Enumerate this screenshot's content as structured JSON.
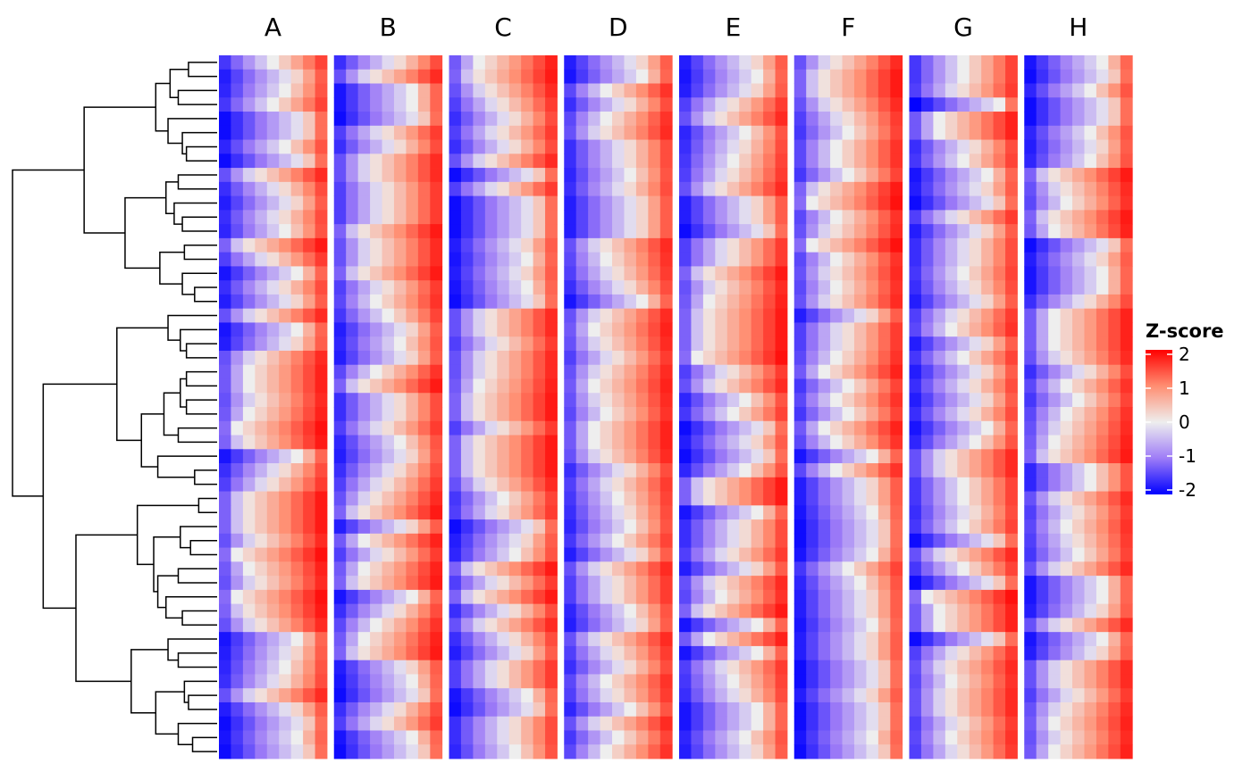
{
  "chart_data": {
    "type": "heatmap",
    "title": "",
    "rows": 50,
    "columns_per_panel": 9,
    "value_encoding": "each row in each panel increases monotonically left to right; zero_col is the column position (0-8) where its Z-score crosses 0",
    "panels": [
      {
        "name": "A",
        "zero_col": [
          4,
          5.5,
          5,
          4,
          6.5,
          6.5,
          5,
          6.5,
          2.5,
          4.5,
          5.5,
          4.5,
          5,
          1.5,
          3.5,
          6,
          4.5,
          5.5,
          2.5,
          6,
          5.5,
          2.5,
          2,
          2,
          2.5,
          2,
          1,
          1.5,
          6,
          4.5,
          3.5,
          1.5,
          1.5,
          1.5,
          2.5,
          1,
          2,
          2.5,
          1,
          1.5,
          2.5,
          6,
          5.5,
          5,
          4.5,
          2.5,
          5.5,
          6.5,
          6,
          6.5
        ]
      },
      {
        "name": "B",
        "zero_col": [
          4.5,
          2.5,
          6,
          6,
          6.5,
          3.5,
          4.5,
          2.5,
          2.5,
          3.5,
          3.5,
          3.5,
          1.5,
          2.5,
          2.5,
          1.5,
          3.5,
          3,
          4,
          5.5,
          5,
          5.5,
          3,
          1.5,
          4.5,
          4.5,
          3.5,
          5,
          5.5,
          4.5,
          3.5,
          2.5,
          1.5,
          5.5,
          2,
          3.5,
          2,
          1.5,
          6,
          4.5,
          3,
          2,
          1.5,
          5.5,
          6,
          6.5,
          4.5,
          3.5,
          6,
          6.5
        ]
      },
      {
        "name": "C",
        "zero_col": [
          2,
          1.5,
          2.5,
          3.5,
          4.5,
          3.5,
          4.5,
          2.5,
          6.5,
          3.5,
          6.5,
          6.5,
          6.5,
          5.5,
          6,
          5.5,
          6,
          6.5,
          2.5,
          2.5,
          3.5,
          2.5,
          2.5,
          2,
          1.5,
          1.5,
          3.5,
          1.5,
          1.5,
          1.5,
          2.5,
          4,
          3.5,
          6.5,
          5.5,
          5,
          1.5,
          3.5,
          1.5,
          4.5,
          2.5,
          4.5,
          5.5,
          3.5,
          3.5,
          6,
          6.5,
          4.5,
          4.5,
          5
        ]
      },
      {
        "name": "D",
        "zero_col": [
          5.5,
          6,
          3,
          4.5,
          3,
          2.5,
          4.5,
          4.5,
          5,
          4.5,
          5.5,
          5.5,
          5.5,
          2.5,
          3,
          3.5,
          4.5,
          6,
          2.5,
          2,
          2.5,
          3.5,
          2.5,
          2,
          2.5,
          3,
          2,
          2,
          2.5,
          4.5,
          3.5,
          4,
          4.5,
          5,
          4,
          5.5,
          2.5,
          3.5,
          3.5,
          5,
          5.5,
          2.5,
          3.5,
          4.5,
          3,
          3.5,
          5,
          2.5,
          4,
          3
        ]
      },
      {
        "name": "E",
        "zero_col": [
          5.5,
          6,
          5.5,
          3.5,
          2.5,
          5,
          4.5,
          4,
          3.5,
          2.5,
          5.5,
          5.5,
          6.5,
          3.5,
          3.5,
          1.5,
          2.5,
          2,
          1.5,
          1.5,
          1.5,
          1,
          3.5,
          2.5,
          5,
          4,
          6.5,
          5.5,
          6.5,
          5,
          1.5,
          1.5,
          6,
          4.5,
          4.5,
          3.5,
          5.5,
          2.5,
          3,
          1.5,
          6,
          2,
          6,
          3.5,
          4,
          4.5,
          6,
          6,
          5,
          5.5
        ]
      },
      {
        "name": "F",
        "zero_col": [
          2.5,
          1.5,
          1.5,
          2.5,
          3.5,
          4,
          3,
          3,
          4,
          1.5,
          1,
          3,
          2.5,
          1,
          3,
          2.5,
          3,
          2.5,
          5.5,
          3.5,
          3.5,
          3,
          2,
          4,
          3,
          4,
          2,
          3,
          6,
          3,
          5.5,
          5.5,
          6,
          6.5,
          6.5,
          6,
          4,
          5,
          5.5,
          5.5,
          6,
          5.5,
          5.5,
          6.5,
          6.5,
          5.5,
          6.5,
          6.5,
          6,
          6.5
        ]
      },
      {
        "name": "G",
        "zero_col": [
          4,
          4,
          3.5,
          7,
          2,
          2,
          4.5,
          4,
          6,
          5.5,
          6.5,
          3.5,
          5.5,
          4.5,
          4.5,
          4,
          4.5,
          5.5,
          3.5,
          3,
          5.5,
          4,
          5.5,
          4.5,
          5.5,
          4.5,
          6,
          5,
          2.5,
          2.5,
          4,
          4,
          4.5,
          4,
          6.5,
          2.5,
          4,
          6.5,
          1,
          2,
          2,
          6.5,
          3.5,
          2.5,
          3,
          2.5,
          2.5,
          3.5,
          3,
          3.5
        ]
      },
      {
        "name": "H",
        "zero_col": [
          6,
          6.5,
          5,
          6.5,
          6.5,
          5,
          5.5,
          5,
          1.5,
          2.5,
          3,
          1.5,
          2,
          6.5,
          5.5,
          6,
          6,
          4.5,
          2,
          2,
          2,
          2.5,
          4.5,
          3,
          4,
          3,
          2.5,
          2,
          1.5,
          5,
          5,
          2.5,
          3.5,
          3,
          3.5,
          4,
          2.5,
          6,
          6,
          5.5,
          2.5,
          6,
          5.5,
          2.5,
          2.5,
          3.5,
          2.5,
          2,
          2.5,
          2
        ]
      }
    ],
    "row_dendrogram": [
      1.0,
      [
        0.65,
        [
          0.3,
          [
            0.23,
            [
              0.14,
              0,
              1
            ],
            [
              0.19,
              2,
              3
            ]
          ],
          [
            0.24,
            4,
            [
              0.17,
              5,
              [
                0.15,
                6,
                7
              ]
            ]
          ]
        ],
        [
          0.45,
          [
            0.25,
            [
              0.19,
              8,
              9
            ],
            [
              0.21,
              10,
              [
                0.17,
                11,
                12
              ]
            ]
          ],
          [
            0.28,
            [
              0.16,
              13,
              14
            ],
            [
              0.17,
              15,
              [
                0.11,
                16,
                17
              ]
            ]
          ]
        ]
      ],
      [
        0.85,
        [
          0.49,
          [
            0.24,
            18,
            [
              0.18,
              19,
              [
                0.15,
                20,
                21
              ]
            ]
          ],
          [
            0.37,
            [
              0.26,
              [
                0.18,
                [
                  0.15,
                  22,
                  23
                ],
                [
                  0.15,
                  24,
                  25
                ]
              ],
              [
                0.19,
                26,
                27
              ]
            ],
            [
              0.29,
              28,
              [
                0.11,
                29,
                30
              ]
            ]
          ]
        ],
        [
          0.69,
          [
            0.39,
            [
              0.09,
              31,
              32
            ],
            [
              0.31,
              [
                0.18,
                33,
                [
                  0.13,
                  34,
                  35
                ]
              ],
              [
                0.29,
                [
                  0.19,
                  36,
                  37
                ],
                [
                  0.25,
                  38,
                  [
                    0.17,
                    39,
                    40
                  ]
                ]
              ]
            ]
          ],
          [
            0.42,
            [
              0.24,
              41,
              [
                0.19,
                42,
                43
              ]
            ],
            [
              0.3,
              [
                0.16,
                44,
                [
                  0.14,
                  45,
                  46
                ]
              ],
              [
                0.19,
                47,
                [
                  0.12,
                  48,
                  49
                ]
              ]
            ]
          ]
        ]
      ]
    ],
    "color_scale": {
      "min": -2,
      "max": 2,
      "low": "#0000FF",
      "mid_low": "#9E7CF7",
      "mid": "#EEEEEE",
      "mid_high": "#FF8E72",
      "high": "#FF0000"
    },
    "legend": {
      "title": "Z-score",
      "ticks": [
        "2",
        "1",
        "0",
        "-1",
        "-2"
      ],
      "tick_values": [
        2,
        1,
        0,
        -1,
        -2
      ],
      "placement": "right"
    }
  }
}
